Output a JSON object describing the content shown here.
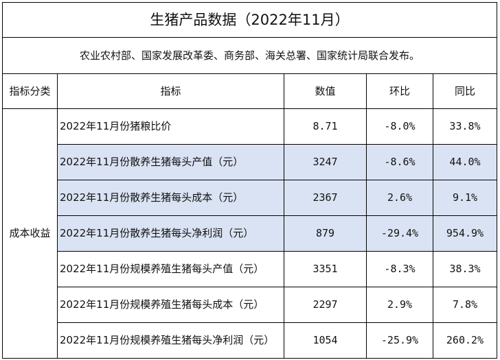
{
  "title": "生猪产品数据（2022年11月）",
  "subtitle": "农业农村部、国家发展改革委、商务部、海关总署、国家统计局联合发布。",
  "headers": [
    "指标分类",
    "指标",
    "数值",
    "环比",
    "同比"
  ],
  "category": "成本收益",
  "highlight_color": "#dae3f3",
  "rows": [
    {
      "name": "2022年11月份猪粮比价",
      "value": "8.71",
      "mom": "-8.0%",
      "yoy": "33.8%",
      "highlight": false
    },
    {
      "name": "2022年11月份散养生猪每头产值（元）",
      "value": "3247",
      "mom": "-8.6%",
      "yoy": "44.0%",
      "highlight": true
    },
    {
      "name": "2022年11月份散养生猪每头成本（元）",
      "value": "2367",
      "mom": "2.6%",
      "yoy": "9.1%",
      "highlight": true
    },
    {
      "name": "2022年11月份散养生猪每头净利润（元）",
      "value": "879",
      "mom": "-29.4%",
      "yoy": "954.9%",
      "highlight": true
    },
    {
      "name": "2022年11月份规模养殖生猪每头产值（元）",
      "value": "3351",
      "mom": "-8.3%",
      "yoy": "38.3%",
      "highlight": false
    },
    {
      "name": "2022年11月份规模养殖生猪每头成本（元）",
      "value": "2297",
      "mom": "2.9%",
      "yoy": "7.8%",
      "highlight": false
    },
    {
      "name": "2022年11月份规模养殖生猪每头净利润（元）",
      "value": "1054",
      "mom": "-25.9%",
      "yoy": "260.2%",
      "highlight": false
    }
  ]
}
